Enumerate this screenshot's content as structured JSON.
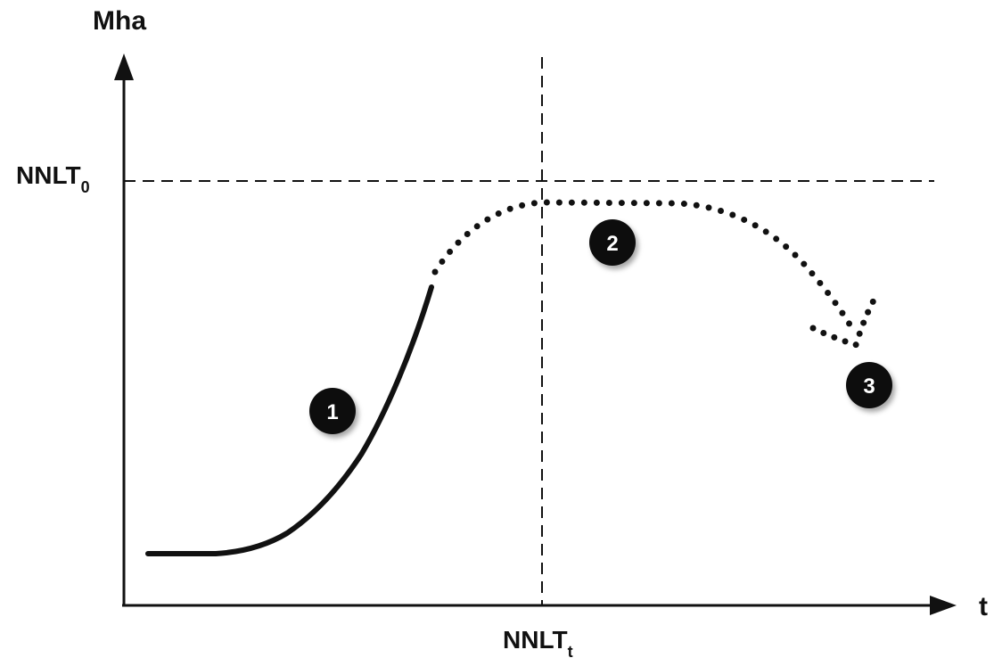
{
  "axes": {
    "y_label": "Mha",
    "x_label": "t"
  },
  "threshold_y": {
    "label_main": "NNLT",
    "label_sub": "0"
  },
  "threshold_x": {
    "label_main": "NNLT",
    "label_sub": "t"
  },
  "phases": [
    {
      "number": "1",
      "line_style": "solid"
    },
    {
      "number": "2",
      "line_style": "dotted"
    },
    {
      "number": "3",
      "line_style": "dotted"
    }
  ],
  "colors": {
    "ink": "#111111",
    "badge_fill": "#111111",
    "badge_text": "#ffffff",
    "background": "#ffffff"
  }
}
